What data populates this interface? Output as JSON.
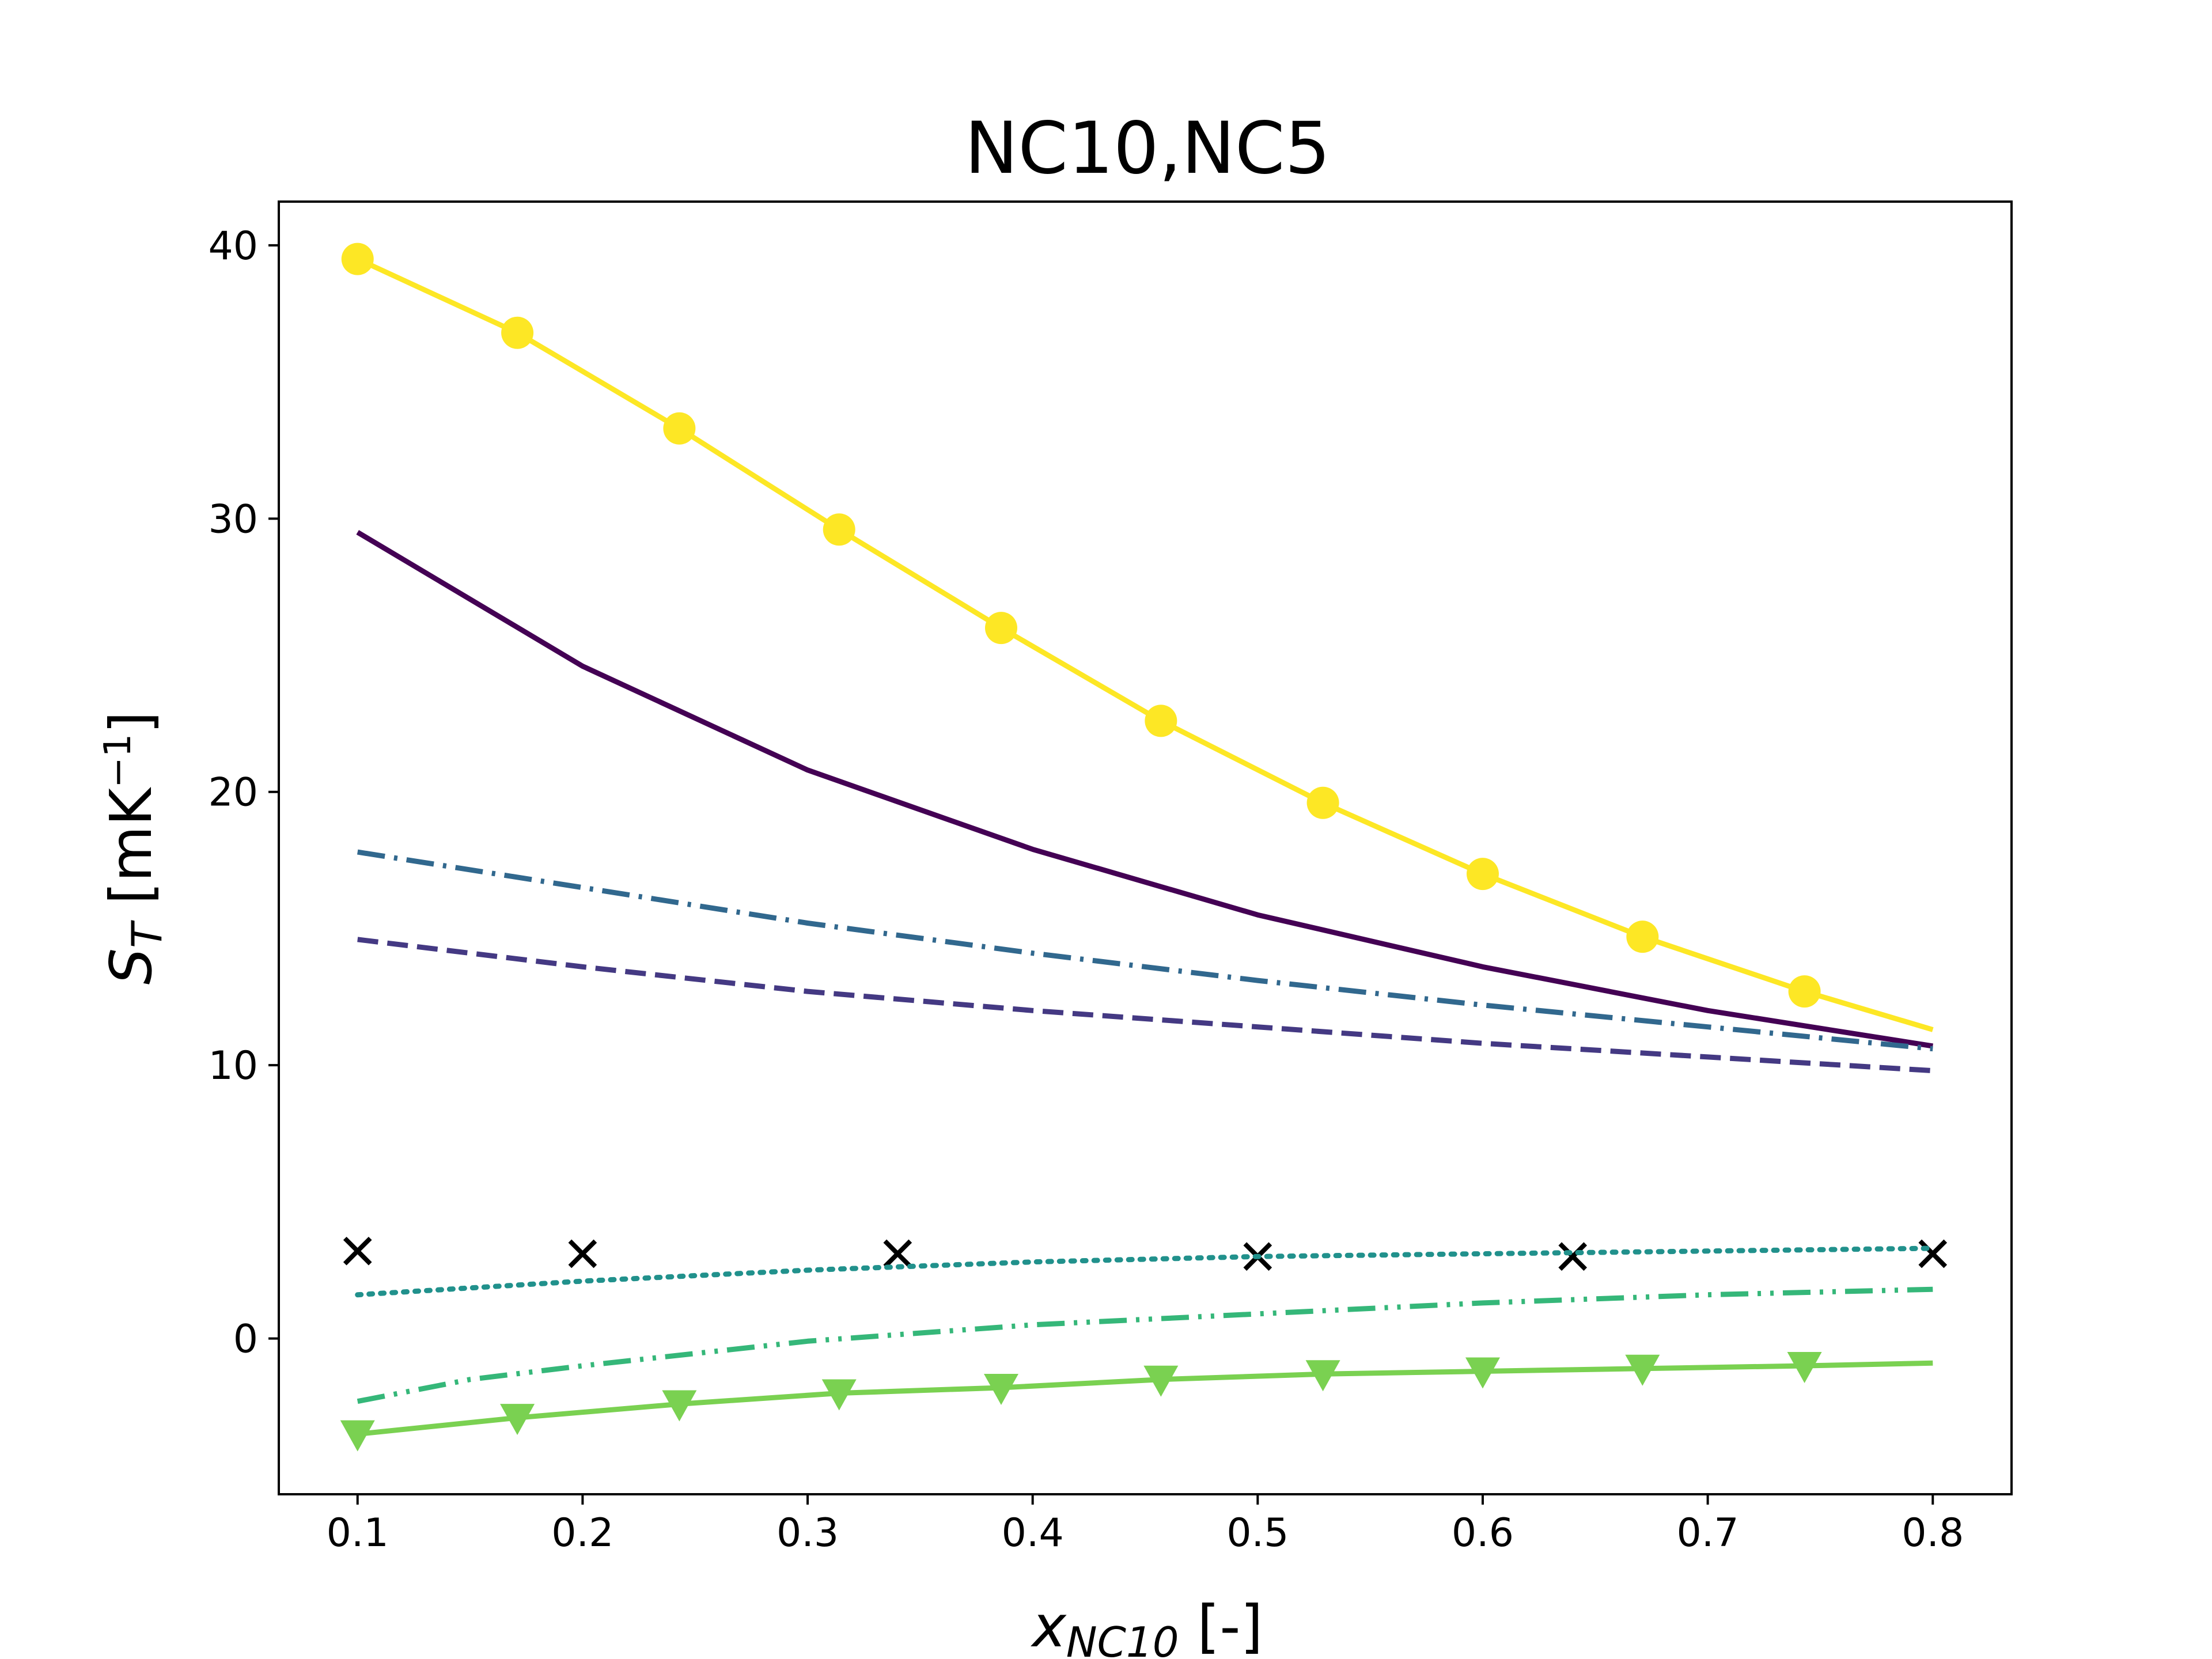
{
  "chart_data": {
    "type": "line",
    "title": "NC10,NC5",
    "xlabel": {
      "symbol": "x",
      "subscript": "NC10",
      "unit": " [-]"
    },
    "ylabel": {
      "symbol": "S",
      "subscript": "T",
      "unit_prefix": " [mK",
      "unit_sup": "−1",
      "unit_suffix": "]"
    },
    "xlim": [
      0.065,
      0.835
    ],
    "ylim": [
      -5.7,
      41.6
    ],
    "xticks": [
      0.1,
      0.2,
      0.3,
      0.4,
      0.5,
      0.6,
      0.7,
      0.8
    ],
    "xtick_labels": [
      "0.1",
      "0.2",
      "0.3",
      "0.4",
      "0.5",
      "0.6",
      "0.7",
      "0.8"
    ],
    "yticks": [
      0,
      10,
      20,
      30,
      40
    ],
    "ytick_labels": [
      "0",
      "10",
      "20",
      "30",
      "40"
    ],
    "grid": false,
    "series": [
      {
        "color": "#fde725",
        "line_style": "solid",
        "marker": "circle",
        "x": [
          0.1,
          0.171,
          0.243,
          0.314,
          0.386,
          0.457,
          0.529,
          0.6,
          0.671,
          0.743,
          0.8
        ],
        "y": [
          39.5,
          36.8,
          33.3,
          29.6,
          26.0,
          22.6,
          19.6,
          17.0,
          14.7,
          12.7,
          11.3
        ],
        "marker_x": [
          0.1,
          0.171,
          0.243,
          0.314,
          0.386,
          0.457,
          0.529,
          0.6,
          0.671,
          0.743
        ],
        "marker_y": [
          39.5,
          36.8,
          33.3,
          29.6,
          26.0,
          22.6,
          19.6,
          17.0,
          14.7,
          12.7
        ]
      },
      {
        "color": "#440154",
        "line_style": "solid",
        "marker": "none",
        "x": [
          0.1,
          0.2,
          0.3,
          0.4,
          0.5,
          0.6,
          0.7,
          0.8
        ],
        "y": [
          29.5,
          24.6,
          20.8,
          17.9,
          15.5,
          13.6,
          12.0,
          10.7
        ]
      },
      {
        "color": "#31688e",
        "line_style": "dashdot",
        "marker": "none",
        "x": [
          0.1,
          0.2,
          0.3,
          0.4,
          0.5,
          0.6,
          0.7,
          0.8
        ],
        "y": [
          17.8,
          16.5,
          15.2,
          14.1,
          13.1,
          12.2,
          11.4,
          10.6
        ]
      },
      {
        "color": "#443983",
        "line_style": "dashed",
        "marker": "none",
        "x": [
          0.1,
          0.2,
          0.3,
          0.4,
          0.5,
          0.6,
          0.7,
          0.8
        ],
        "y": [
          14.6,
          13.6,
          12.7,
          12.0,
          11.4,
          10.8,
          10.3,
          9.8
        ]
      },
      {
        "color": "#000000",
        "line_style": "none",
        "marker": "x",
        "x": [
          0.1,
          0.2,
          0.34,
          0.5,
          0.64,
          0.8
        ],
        "y": [
          3.2,
          3.1,
          3.1,
          3.0,
          3.0,
          3.1
        ]
      },
      {
        "color": "#21918c",
        "line_style": "dotted",
        "marker": "none",
        "x": [
          0.1,
          0.2,
          0.3,
          0.4,
          0.5,
          0.6,
          0.7,
          0.8
        ],
        "y": [
          1.6,
          2.1,
          2.5,
          2.8,
          3.0,
          3.1,
          3.2,
          3.3
        ]
      },
      {
        "color": "#35b779",
        "line_style": "dashdotdot",
        "marker": "none",
        "x": [
          0.1,
          0.15,
          0.2,
          0.3,
          0.4,
          0.5,
          0.6,
          0.7,
          0.8
        ],
        "y": [
          -2.3,
          -1.5,
          -1.0,
          -0.1,
          0.5,
          0.9,
          1.3,
          1.6,
          1.8
        ]
      },
      {
        "color": "#7ad151",
        "line_style": "solid",
        "marker": "triangle-down",
        "x": [
          0.1,
          0.171,
          0.243,
          0.314,
          0.386,
          0.457,
          0.529,
          0.6,
          0.671,
          0.743,
          0.8
        ],
        "y": [
          -3.5,
          -2.9,
          -2.4,
          -2.0,
          -1.8,
          -1.5,
          -1.3,
          -1.2,
          -1.1,
          -1.0,
          -0.9
        ],
        "marker_x": [
          0.1,
          0.171,
          0.243,
          0.314,
          0.386,
          0.457,
          0.529,
          0.6,
          0.671,
          0.743
        ],
        "marker_y": [
          -3.5,
          -2.9,
          -2.4,
          -2.0,
          -1.8,
          -1.5,
          -1.3,
          -1.2,
          -1.1,
          -1.0
        ]
      }
    ]
  }
}
